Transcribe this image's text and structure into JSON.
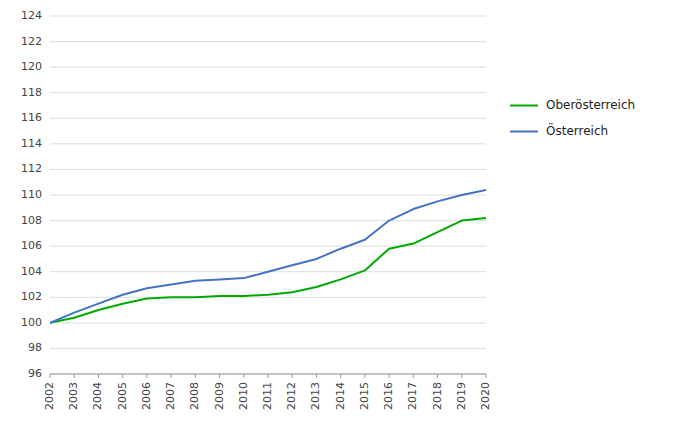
{
  "chart_data": {
    "type": "line",
    "x": [
      2002,
      2003,
      2004,
      2005,
      2006,
      2007,
      2008,
      2009,
      2010,
      2011,
      2012,
      2013,
      2014,
      2015,
      2016,
      2017,
      2018,
      2019,
      2020
    ],
    "xlim": [
      2002,
      2020
    ],
    "xticks": [
      2002,
      2003,
      2004,
      2005,
      2006,
      2007,
      2008,
      2009,
      2010,
      2011,
      2012,
      2013,
      2014,
      2015,
      2016,
      2017,
      2018,
      2019,
      2020
    ],
    "ylim": [
      96,
      124
    ],
    "yticks": [
      96,
      98,
      100,
      102,
      104,
      106,
      108,
      110,
      112,
      114,
      116,
      118,
      120,
      122,
      124
    ],
    "grid": true,
    "legend": "right",
    "series": [
      {
        "name": "Oberösterreich",
        "color": "#00aa00",
        "values": [
          100.0,
          100.4,
          101.0,
          101.5,
          101.9,
          102.0,
          102.0,
          102.1,
          102.1,
          102.2,
          102.4,
          102.8,
          103.4,
          104.1,
          105.8,
          106.2,
          107.1,
          108.0,
          108.2
        ]
      },
      {
        "name": "Österreich",
        "color": "#4472c4",
        "values": [
          100.0,
          100.8,
          101.5,
          102.2,
          102.7,
          103.0,
          103.3,
          103.4,
          103.5,
          104.0,
          104.5,
          105.0,
          105.8,
          106.5,
          108.0,
          108.9,
          109.5,
          110.0,
          110.4
        ]
      }
    ]
  }
}
